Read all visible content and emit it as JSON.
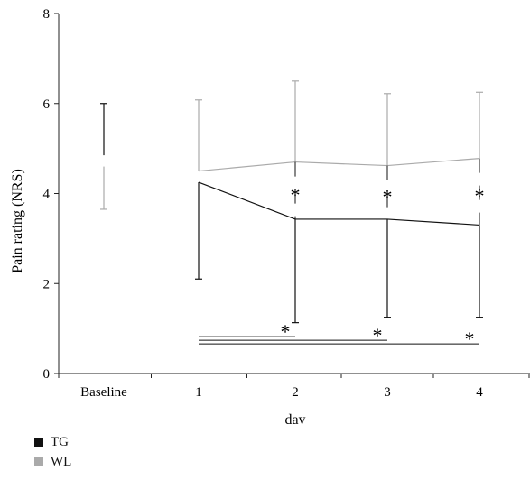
{
  "chart_data": {
    "type": "line",
    "title": "",
    "xlabel": "day",
    "ylabel": "Pain rating (NRS)",
    "categories": [
      "Baseline",
      "1",
      "2",
      "3",
      "4"
    ],
    "ylim": [
      0,
      8
    ],
    "yticks": [
      0,
      2,
      4,
      6,
      8
    ],
    "grid": false,
    "legend_position": "bottom-left",
    "series": [
      {
        "name": "TG",
        "color": "#111111",
        "values": [
          4.85,
          4.25,
          3.43,
          3.43,
          3.3
        ],
        "error_lower": [
          4.83,
          2.1,
          1.13,
          1.25,
          1.25
        ],
        "error_upper": [
          6.0,
          null,
          null,
          null,
          null
        ],
        "error_direction": [
          "up",
          "down",
          "down",
          "down",
          "down"
        ]
      },
      {
        "name": "WL",
        "color": "#aaaaaa",
        "values": [
          4.6,
          4.5,
          4.7,
          4.62,
          4.78
        ],
        "error_lower": [
          3.65,
          null,
          null,
          null,
          null
        ],
        "error_upper": [
          4.6,
          6.08,
          6.5,
          6.22,
          6.25
        ],
        "error_direction": [
          "down",
          "up",
          "up",
          "up",
          "up"
        ]
      }
    ],
    "annotations": {
      "between_groups": [
        {
          "x": "2",
          "text": "*"
        },
        {
          "x": "3",
          "text": "*"
        },
        {
          "x": "4",
          "text": "*"
        }
      ],
      "vs_day1": [
        {
          "from": "1",
          "to": "2",
          "text": "*",
          "y": 0.82
        },
        {
          "from": "1",
          "to": "3",
          "text": "*",
          "y": 0.74
        },
        {
          "from": "1",
          "to": "4",
          "text": "*",
          "y": 0.66
        }
      ]
    }
  }
}
